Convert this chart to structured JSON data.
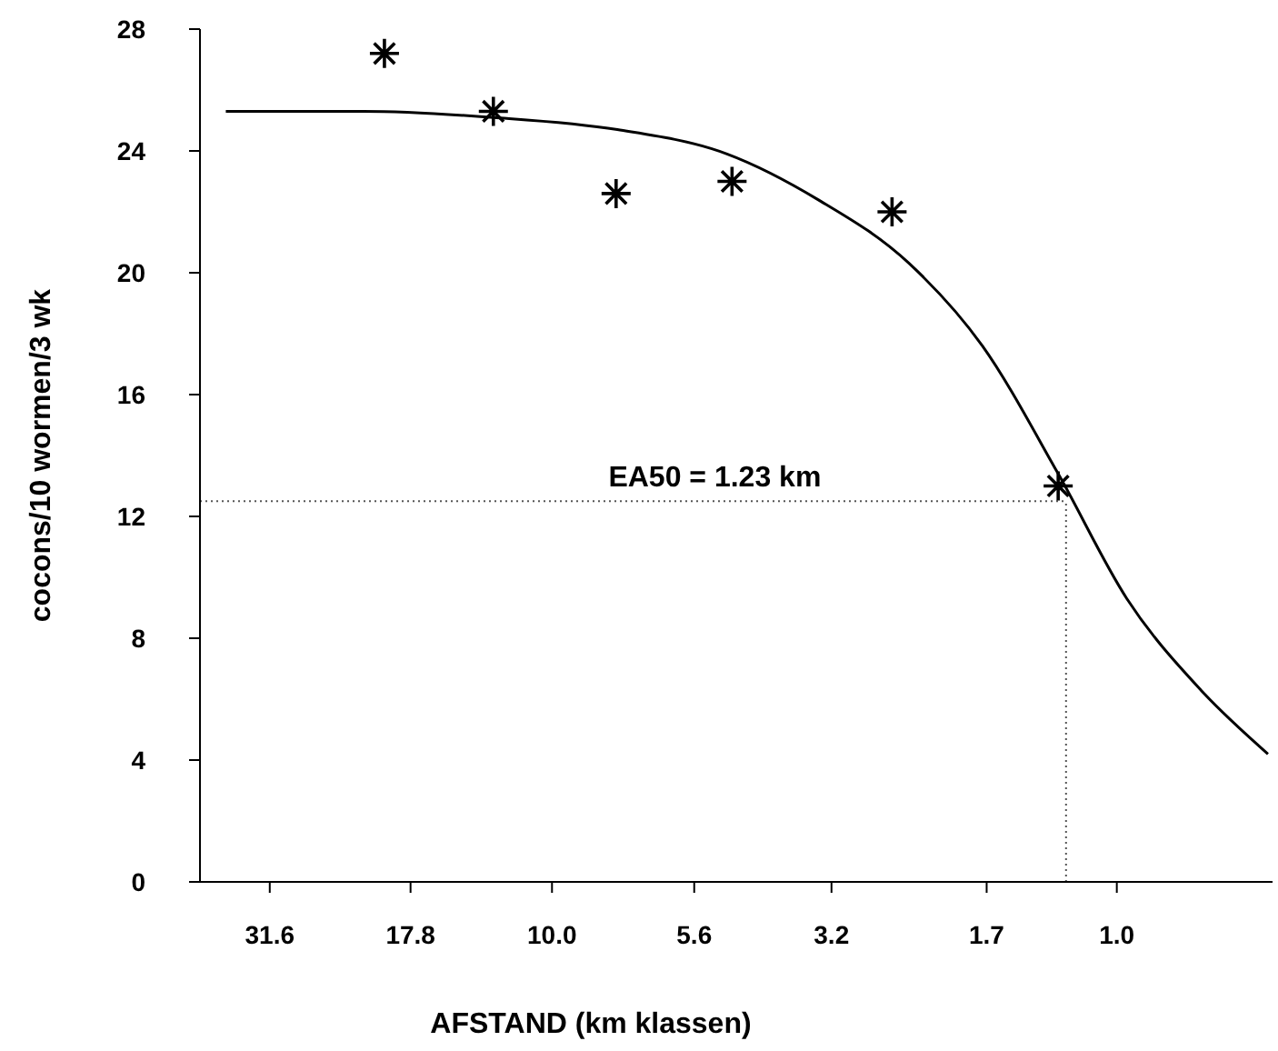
{
  "chart_data": {
    "type": "scatter",
    "xlabel": "AFSTAND (km klassen)",
    "ylabel": "cocons/10 wormen/3 wk",
    "log": "x",
    "xlim": [
      42,
      0.53
    ],
    "xticks": [
      31.6,
      17.8,
      {
        "value": 10,
        "label": "10.0"
      },
      5.6,
      3.2,
      1.7,
      {
        "value": 1,
        "label": "1.0"
      }
    ],
    "ylim": [
      0,
      28
    ],
    "yticks": [
      0,
      4,
      8,
      12,
      16,
      20,
      24,
      28
    ],
    "marker": "cross",
    "series": [
      {
        "color": "#000000",
        "x": [
          19.8,
          12.7,
          7.7,
          4.8,
          2.5,
          1.27
        ],
        "values": [
          27.2,
          25.3,
          22.6,
          23.0,
          22.0,
          13.0
        ]
      },
      {
        "type": "line",
        "color": "#000000",
        "marker": "none",
        "line_style": "solid",
        "x": [
          37.8,
          21.6,
          12.7,
          7.66,
          4.9,
          3.38,
          2.33,
          1.73,
          1.27,
          0.96,
          0.71,
          0.54
        ],
        "values": [
          25.3,
          25.3,
          25.1,
          24.7,
          23.9,
          22.4,
          20.3,
          17.6,
          13.4,
          9.3,
          6.3,
          4.2
        ]
      }
    ],
    "ref_lines": [
      {
        "axis": "y",
        "value": 12.5,
        "line_style": "dotted",
        "color": "#555555"
      },
      {
        "axis": "x",
        "value": 1.23,
        "line_style": "dotted",
        "color": "#555555"
      }
    ],
    "annotations": [
      "EA50 = 1.23 km"
    ]
  }
}
